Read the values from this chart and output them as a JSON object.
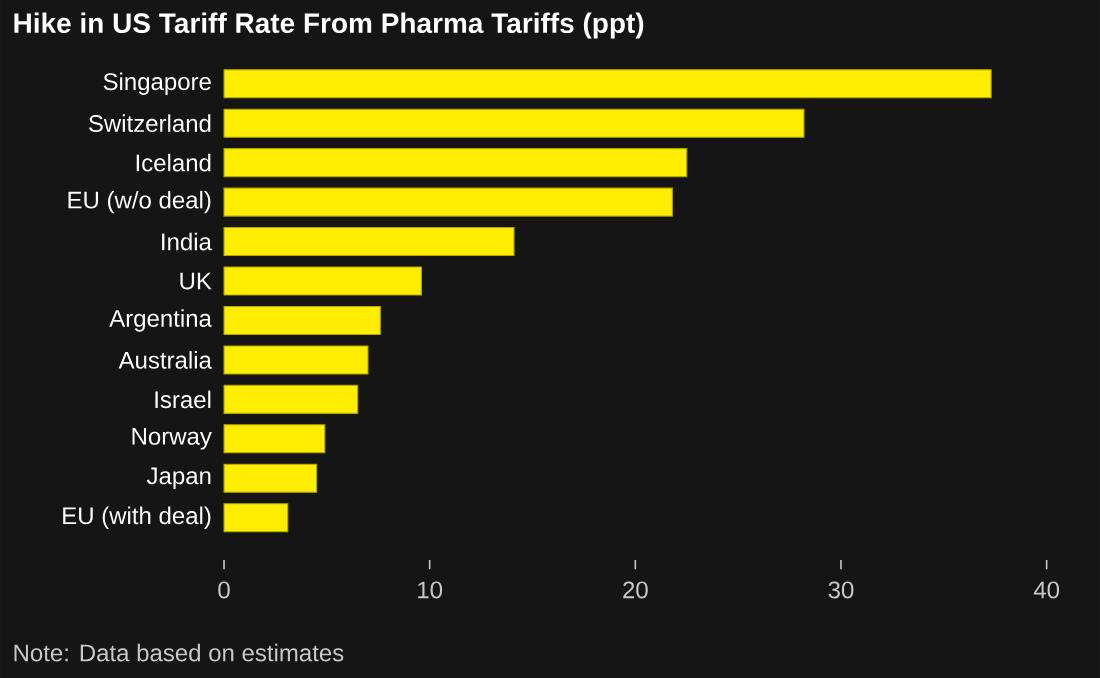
{
  "chart_data": {
    "type": "bar",
    "orientation": "horizontal",
    "title": "Hike in US Tariff Rate From Pharma Tariffs (ppt)",
    "categories": [
      "Singapore",
      "Switzerland",
      "Iceland",
      "EU (w/o deal)",
      "India",
      "UK",
      "Argentina",
      "Australia",
      "Israel",
      "Norway",
      "Japan",
      "EU (with deal)"
    ],
    "values": [
      37.3,
      28.2,
      22.5,
      21.8,
      14.1,
      9.6,
      7.6,
      7.0,
      6.5,
      4.9,
      4.5,
      3.1
    ],
    "color": "#ffed00",
    "xlim": [
      0,
      40
    ],
    "xticks": [
      0,
      10,
      20,
      30,
      40
    ],
    "annotations": [
      "Note: Data based on estimates"
    ]
  }
}
